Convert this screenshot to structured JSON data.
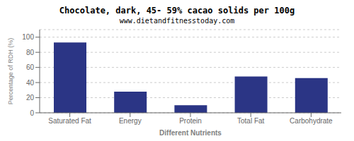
{
  "chart_data": {
    "type": "bar",
    "title": "Chocolate, dark, 45- 59% cacao solids per 100g",
    "subtitle": "www.dietandfitnesstoday.com",
    "xlabel": "Different Nutrients",
    "ylabel": "Percentage of RDH (%)",
    "categories": [
      "Saturated Fat",
      "Energy",
      "Protein",
      "Total Fat",
      "Carbohydrate"
    ],
    "values": [
      93,
      28,
      10,
      48,
      46
    ],
    "color": "#2b3585",
    "ylim": [
      0,
      110
    ],
    "yticks": [
      0,
      20,
      40,
      60,
      80,
      100
    ],
    "grid": true
  }
}
